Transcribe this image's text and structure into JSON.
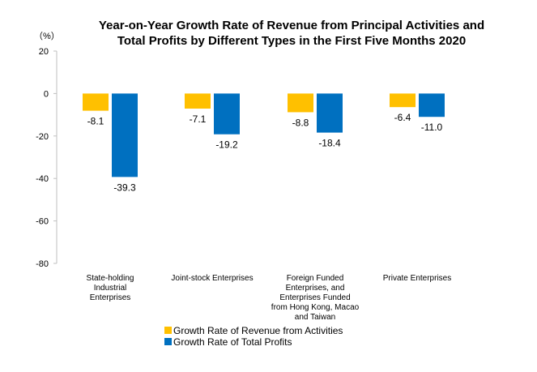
{
  "chart_data": {
    "type": "bar",
    "title_lines": [
      "Year-on-Year Growth Rate of Revenue from Principal Activities  and",
      "Total Profits  by Different Types in the First Five Months 2020"
    ],
    "unit_label": "（%）",
    "categories": [
      [
        "State-holding",
        "Industrial",
        "Enterprises"
      ],
      [
        "Joint-stock Enterprises"
      ],
      [
        "Foreign Funded",
        "Enterprises, and",
        "Enterprises Funded",
        "from Hong Kong, Macao",
        "and Taiwan"
      ],
      [
        "Private Enterprises"
      ]
    ],
    "series": [
      {
        "name": "Growth Rate of Revenue from Activities",
        "color": "#FFC000",
        "values": [
          -8.1,
          -7.1,
          -8.8,
          -6.4
        ],
        "labels": [
          "-8.1",
          "-7.1",
          "-8.8",
          "-6.4"
        ]
      },
      {
        "name": "Growth Rate of Total Profits",
        "color": "#0070C0",
        "values": [
          -39.3,
          -19.2,
          -18.4,
          -11.0
        ],
        "labels": [
          "-39.3",
          "-19.2",
          "-18.4",
          "-11.0"
        ]
      }
    ],
    "ylim": [
      -80,
      20
    ],
    "yticks": [
      20,
      0,
      -20,
      -40,
      -60,
      -80
    ],
    "legend_position": "bottom"
  }
}
